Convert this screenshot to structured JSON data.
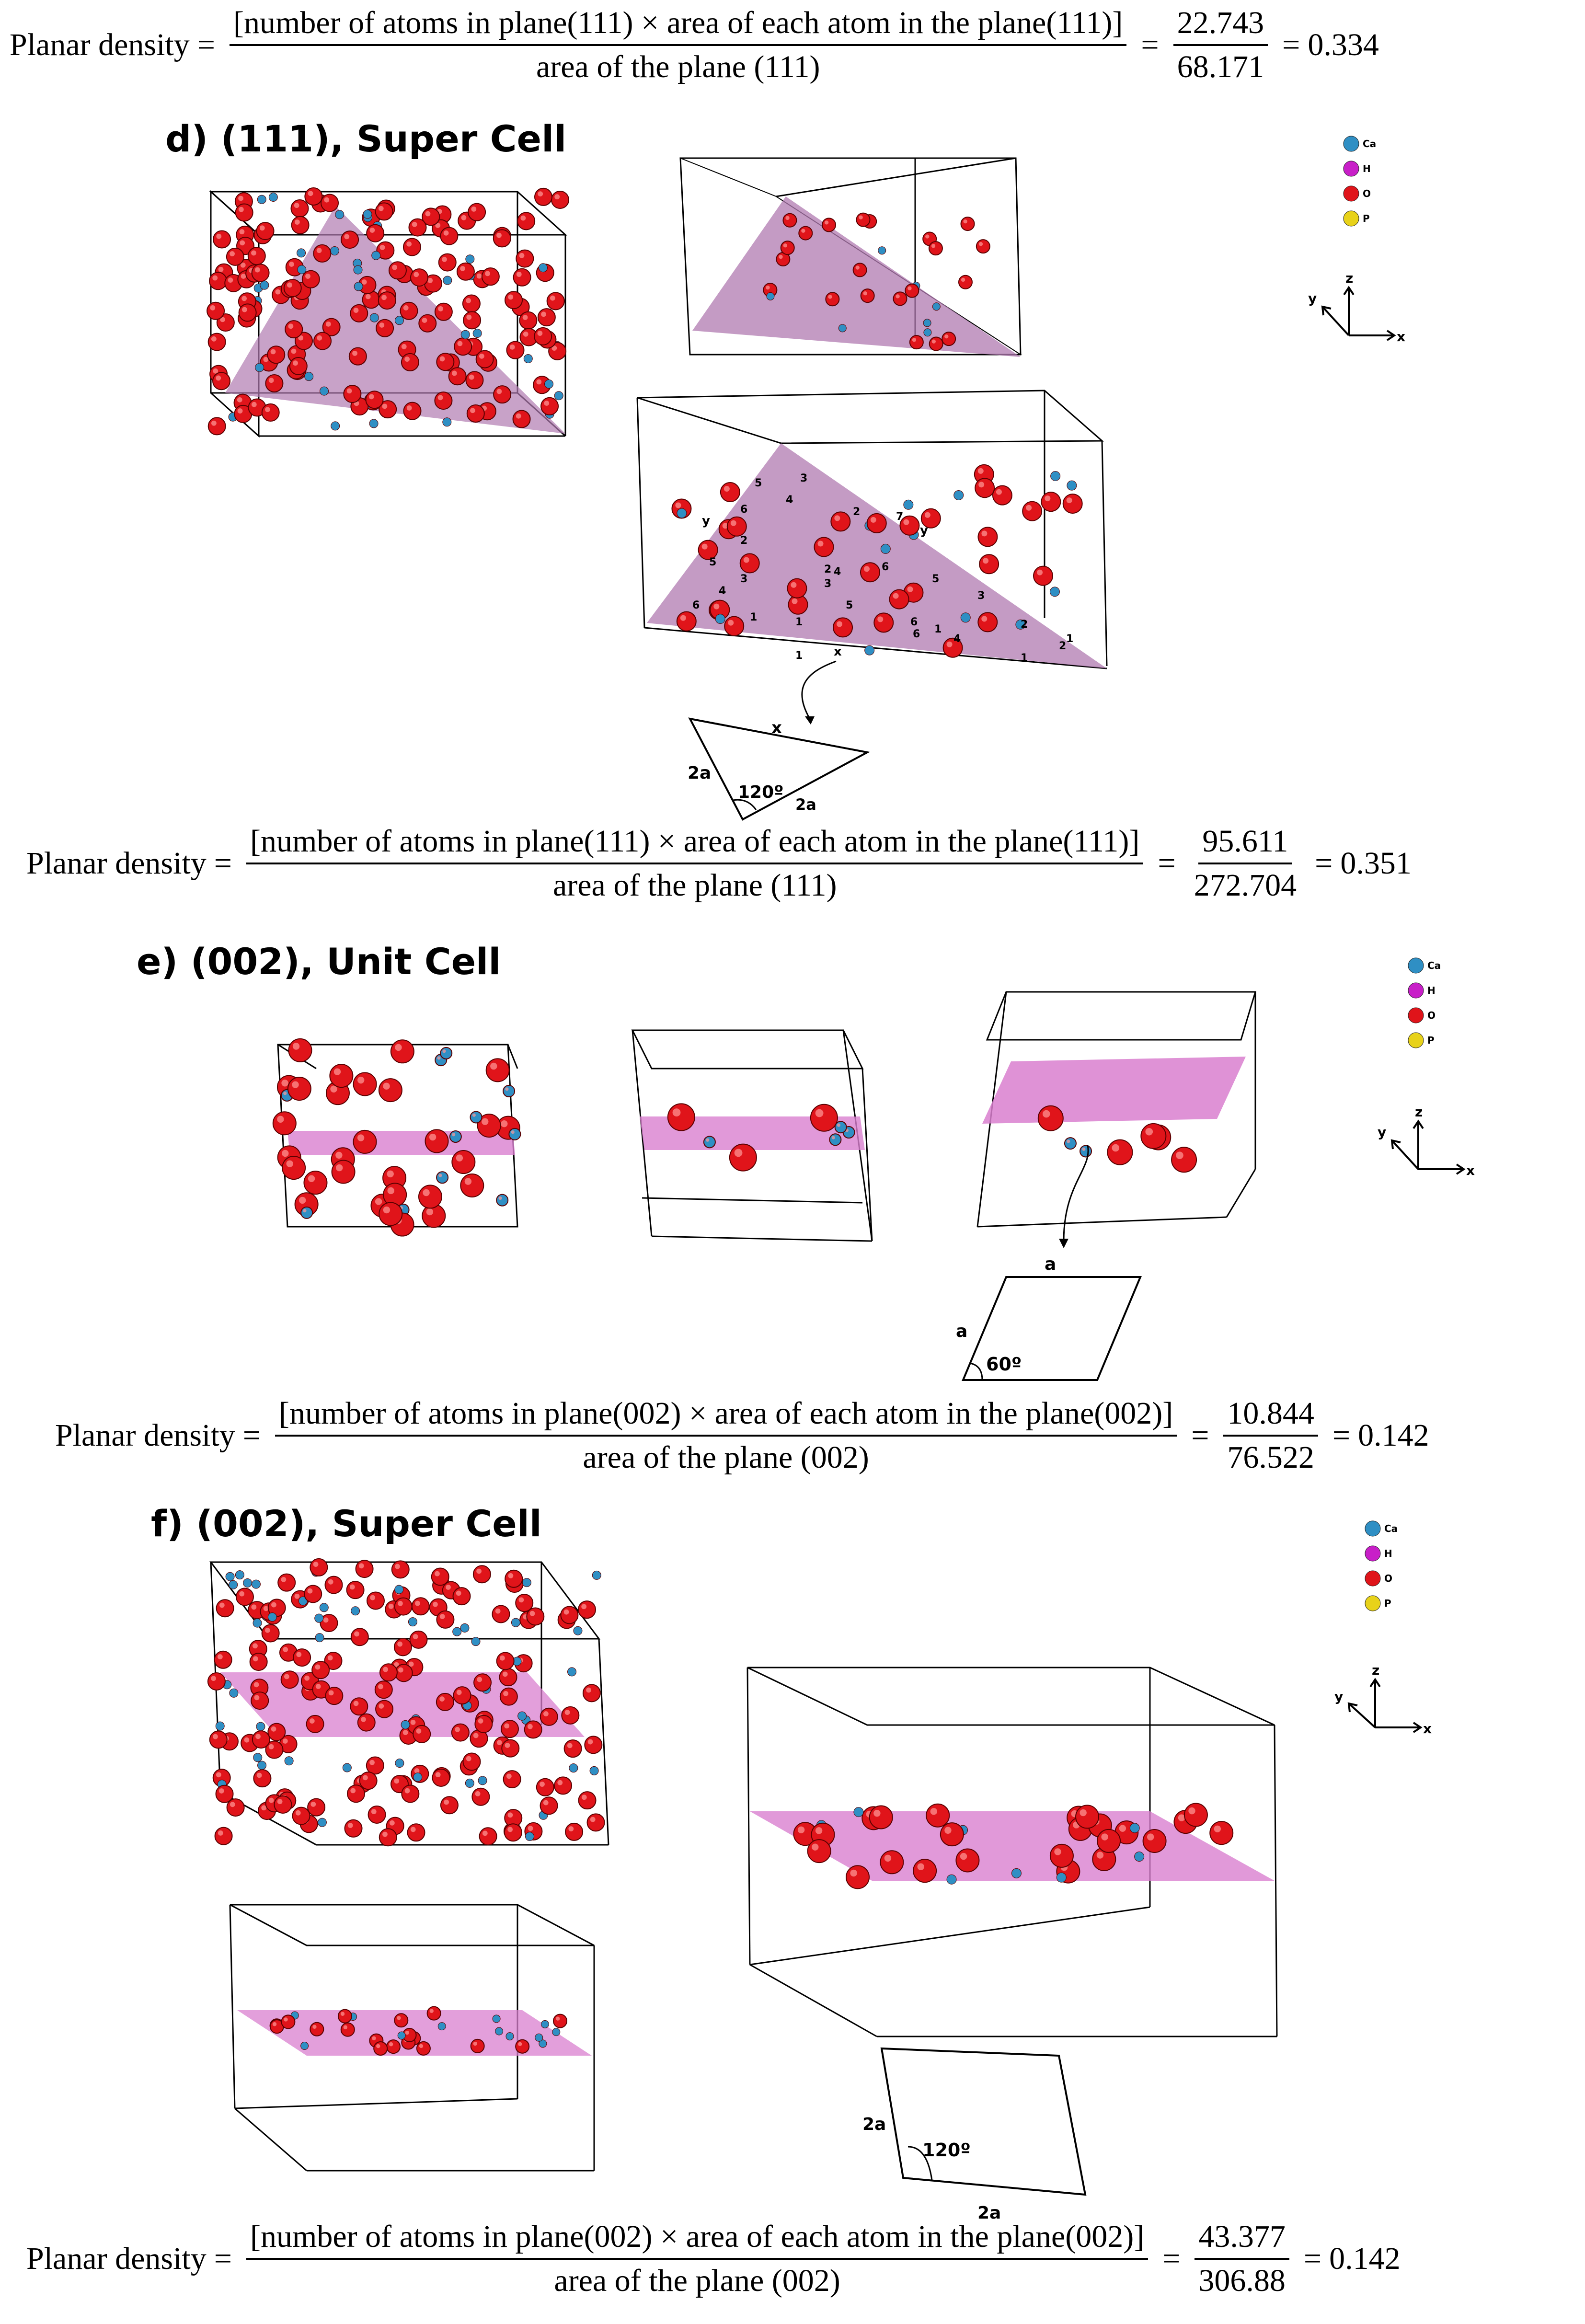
{
  "formula_label": "Planar density",
  "formulas": [
    {
      "numerator": "[number of atoms in plane(111) × area of each atom in the plane(111)]",
      "denominator": "area of the plane (111)",
      "frac_num": "22.743",
      "frac_den": "68.171",
      "result": "0.334"
    },
    {
      "numerator": "[number of atoms in plane(111) × area of each atom in the plane(111)]",
      "denominator": "area of the plane (111)",
      "frac_num": "95.611",
      "frac_den": "272.704",
      "result": "0.351"
    },
    {
      "numerator": "[number of atoms in plane(002) × area of each atom in the plane(002)]",
      "denominator": "area of the plane (002)",
      "frac_num": "10.844",
      "frac_den": "76.522",
      "result": "0.142"
    },
    {
      "numerator": "[number of atoms in plane(002) × area of each atom in the plane(002)]",
      "denominator": "area of the plane (002)",
      "frac_num": "43.377",
      "frac_den": "306.88",
      "result": "0.142"
    }
  ],
  "sections": {
    "d": "d) (111), Super Cell",
    "e": "e) (002), Unit Cell",
    "f": "f) (002), Super Cell"
  },
  "legend": {
    "items": [
      {
        "label": "Ca",
        "color": "#2f8fc4"
      },
      {
        "label": "H",
        "color": "#c81fc8"
      },
      {
        "label": "O",
        "color": "#e0141a"
      },
      {
        "label": "P",
        "color": "#e8d21a"
      }
    ]
  },
  "axes": {
    "z": "z",
    "y": "y",
    "x": "x"
  },
  "triangle_labels": {
    "side1": "2a",
    "side2": "2a",
    "angle": "120º",
    "edge": "x"
  },
  "rhombus_e": {
    "side_top": "a",
    "side_left": "a",
    "angle": "60º"
  },
  "rhombus_f": {
    "side_left": "2a",
    "side_bottom": "2a",
    "angle": "120º"
  },
  "plane_marks": {
    "x": "x",
    "y": "y"
  },
  "atom_numbers": [
    "5",
    "6",
    "2",
    "5",
    "3",
    "4",
    "6",
    "3",
    "4",
    "1",
    "2",
    "6",
    "2",
    "4",
    "3",
    "7",
    "6",
    "5",
    "5",
    "3",
    "1",
    "2",
    "6",
    "4",
    "1",
    "1",
    "2",
    "1",
    "1"
  ],
  "colors": {
    "plane": "#c47ab8",
    "plane_light": "#e08ad0",
    "oxygen": "#e0141a",
    "calcium": "#2f8fc4"
  }
}
